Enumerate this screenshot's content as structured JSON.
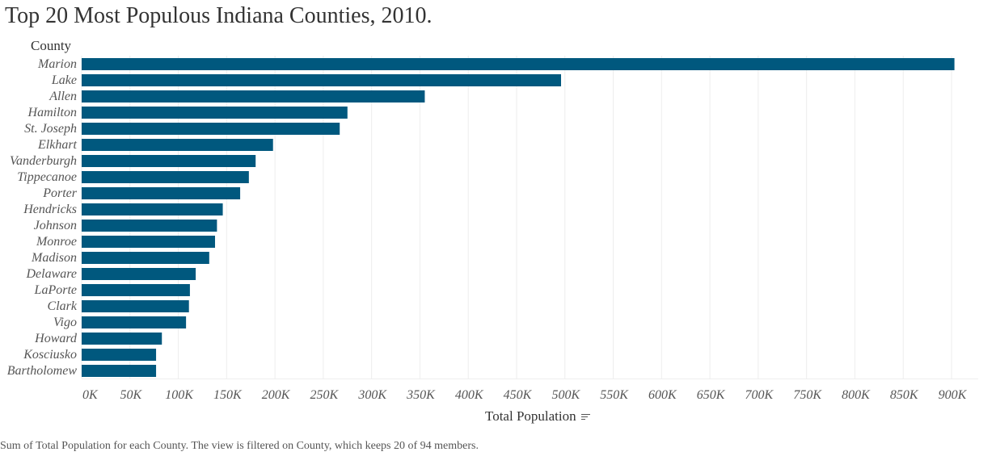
{
  "header": {
    "title": "Top 20 Most Populous Indiana Counties, 2010.",
    "row_header": "County"
  },
  "footer": {
    "caption": "Sum of Total Population for each County. The view is filtered on County, which keeps 20 of 94 members."
  },
  "colors": {
    "bar": "#00587e",
    "grid": "#eeeeee"
  },
  "chart_data": {
    "type": "bar",
    "orientation": "horizontal",
    "title": "Top 20 Most Populous Indiana Counties, 2010.",
    "ylabel": "County",
    "xlabel": "Total Population",
    "xlim": [
      0,
      920000
    ],
    "grid": true,
    "categories": [
      "Marion",
      "Lake",
      "Allen",
      "Hamilton",
      "St. Joseph",
      "Elkhart",
      "Vanderburgh",
      "Tippecanoe",
      "Porter",
      "Hendricks",
      "Johnson",
      "Monroe",
      "Madison",
      "Delaware",
      "LaPorte",
      "Clark",
      "Vigo",
      "Howard",
      "Kosciusko",
      "Bartholomew"
    ],
    "values": [
      903000,
      496000,
      355000,
      275000,
      267000,
      198000,
      180000,
      173000,
      164000,
      146000,
      140000,
      138000,
      132000,
      118000,
      112000,
      111000,
      108000,
      83000,
      77000,
      77000
    ],
    "xticks": [
      0,
      50000,
      100000,
      150000,
      200000,
      250000,
      300000,
      350000,
      400000,
      450000,
      500000,
      550000,
      600000,
      650000,
      700000,
      750000,
      800000,
      850000,
      900000
    ],
    "xtick_labels": [
      "0K",
      "50K",
      "100K",
      "150K",
      "200K",
      "250K",
      "300K",
      "350K",
      "400K",
      "450K",
      "500K",
      "550K",
      "600K",
      "650K",
      "700K",
      "750K",
      "800K",
      "850K",
      "900K"
    ]
  }
}
